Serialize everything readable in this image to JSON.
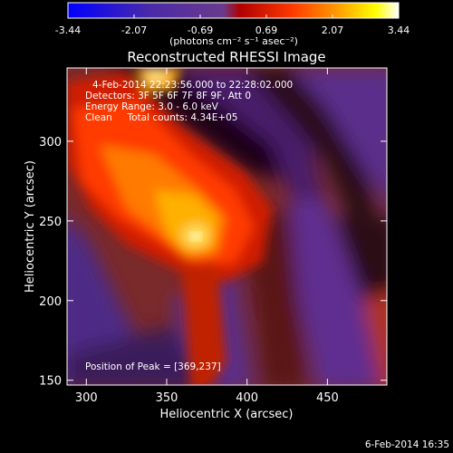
{
  "chart_data": {
    "type": "heatmap",
    "title": "Reconstructed RHESSI Image",
    "xlabel": "Heliocentric X (arcsec)",
    "ylabel": "Heliocentric Y (arcsec)",
    "xlim": [
      288,
      487
    ],
    "ylim": [
      147,
      346
    ],
    "x_ticks": [
      300,
      350,
      400,
      450
    ],
    "y_ticks": [
      150,
      200,
      250,
      300
    ],
    "colorbar": {
      "min": -3.44,
      "max": 3.44,
      "ticks": [
        "-3.44",
        "-2.07",
        "-0.69",
        "0.69",
        "2.07",
        "3.44"
      ],
      "unit_label": "(photons cm⁻² s⁻¹ asec⁻²)",
      "colors": [
        "#0000ff",
        "#4b2aa8",
        "#6a3a8c",
        "#b00000",
        "#ff3a00",
        "#ffa000",
        "#ffff00",
        "#ffffff"
      ]
    },
    "annotations": {
      "time_range": "4-Feb-2014 22:23:56.000 to 22:28:02.000",
      "detectors": "Detectors: 3F 5F 6F 7F 8F 9F, Att 0",
      "energy_range": "Energy Range: 3.0 - 6.0 keV",
      "method_counts": "Clean     Total counts: 4.34E+05",
      "peak": "Position of Peak = [369,237]"
    },
    "peak": {
      "x": 369,
      "y": 237
    },
    "grid": false
  },
  "footer_timestamp": "6-Feb-2014 16:35"
}
